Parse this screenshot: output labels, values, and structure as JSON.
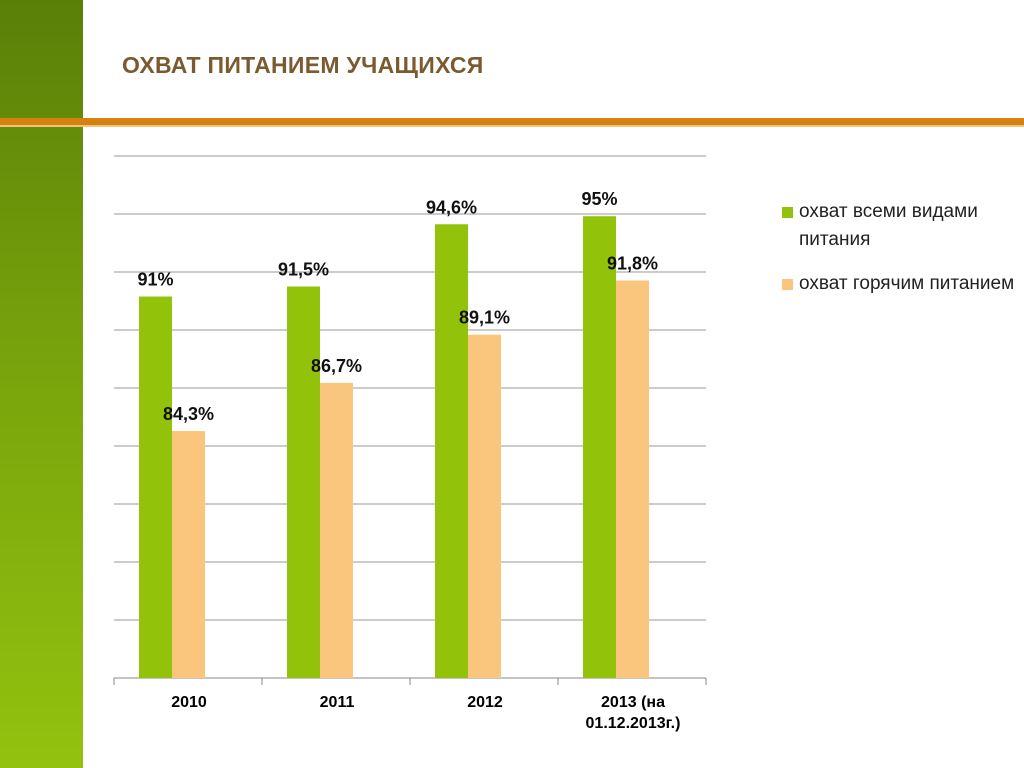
{
  "slide": {
    "title": "ОХВАТ ПИТАНИЕМ УЧАЩИХСЯ"
  },
  "colors": {
    "stripe_top": "#5a7f08",
    "stripe_bottom": "#93c20f",
    "rule": "#d5810f",
    "title": "#7a5a2e"
  },
  "chart_data": {
    "type": "bar",
    "categories": [
      "2010",
      "2011",
      "2012",
      "2013 (на 01.12.2013г.)"
    ],
    "series": [
      {
        "name": "охват всеми видами питания",
        "values": [
          91,
          91.5,
          94.6,
          95
        ],
        "labels": [
          "91%",
          "91,5%",
          "94,6%",
          "95%"
        ],
        "color": "#92c30a"
      },
      {
        "name": "охват горячим питанием",
        "values": [
          84.3,
          86.7,
          89.1,
          91.8
        ],
        "labels": [
          "84,3%",
          "86,7%",
          "89,1%",
          "91,8%"
        ],
        "color": "#fac67e"
      }
    ],
    "ylim": [
      72,
      98
    ],
    "grid": true,
    "legend": "right",
    "data_labels": true
  }
}
